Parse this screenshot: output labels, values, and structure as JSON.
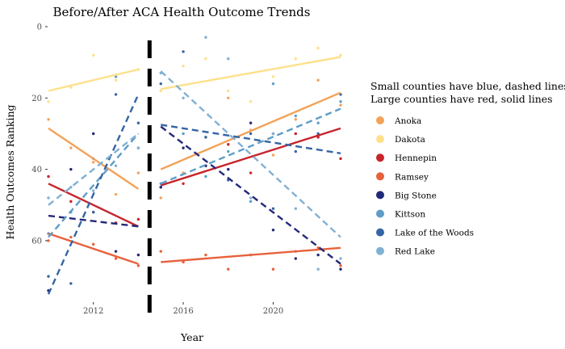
{
  "chart_data": {
    "type": "scatter",
    "title": "Before/After ACA Health Outcome Trends",
    "xlabel": "Year",
    "ylabel": "Health Outcomes Ranking",
    "xlim": [
      2010,
      2023
    ],
    "ylim": [
      0,
      77
    ],
    "y_reversed": true,
    "x_ticks": [
      2012,
      2016,
      2020
    ],
    "y_ticks": [
      0,
      20,
      40,
      60
    ],
    "grid": false,
    "breakpoint_year": 2014.5,
    "legend_title_lines": [
      "Small counties have blue, dashed lines",
      "Large counties have red, solid lines"
    ],
    "legend_position": "right",
    "series": [
      {
        "name": "Anoka",
        "color": "#F4A259",
        "dash": false,
        "points": [
          [
            2010,
            26
          ],
          [
            2011,
            34
          ],
          [
            2012,
            38
          ],
          [
            2013,
            47
          ],
          [
            2014,
            41
          ],
          [
            2015,
            48
          ],
          [
            2016,
            41
          ],
          [
            2017,
            31
          ],
          [
            2018,
            20
          ],
          [
            2019,
            29
          ],
          [
            2020,
            36
          ],
          [
            2021,
            26
          ],
          [
            2022,
            15
          ],
          [
            2023,
            22
          ]
        ],
        "fit_pre": [
          [
            2010,
            28.5
          ],
          [
            2014,
            45.5
          ]
        ],
        "fit_post": [
          [
            2015,
            40
          ],
          [
            2023,
            18.5
          ]
        ]
      },
      {
        "name": "Dakota",
        "color": "#FEE08B",
        "dash": false,
        "points": [
          [
            2010,
            21
          ],
          [
            2011,
            17
          ],
          [
            2012,
            8
          ],
          [
            2013,
            15
          ],
          [
            2014,
            12
          ],
          [
            2015,
            18
          ],
          [
            2016,
            11
          ],
          [
            2017,
            9
          ],
          [
            2018,
            18
          ],
          [
            2019,
            21
          ],
          [
            2020,
            14
          ],
          [
            2021,
            9
          ],
          [
            2022,
            6
          ],
          [
            2023,
            8
          ]
        ],
        "fit_pre": [
          [
            2010,
            18
          ],
          [
            2014,
            12
          ]
        ],
        "fit_post": [
          [
            2015,
            17.5
          ],
          [
            2023,
            8.5
          ]
        ]
      },
      {
        "name": "Hennepin",
        "color": "#C8242B",
        "dash": false,
        "points": [
          [
            2010,
            42
          ],
          [
            2011,
            49
          ],
          [
            2012,
            52
          ],
          [
            2013,
            55
          ],
          [
            2014,
            54
          ],
          [
            2015,
            45
          ],
          [
            2016,
            44
          ],
          [
            2017,
            39
          ],
          [
            2018,
            33
          ],
          [
            2019,
            41
          ],
          [
            2020,
            30
          ],
          [
            2021,
            30
          ],
          [
            2022,
            31
          ],
          [
            2023,
            37
          ]
        ],
        "fit_pre": [
          [
            2010,
            44
          ],
          [
            2014,
            56
          ]
        ],
        "fit_post": [
          [
            2015,
            44.5
          ],
          [
            2023,
            28.5
          ]
        ]
      },
      {
        "name": "Ramsey",
        "color": "#E8613C",
        "dash": false,
        "points": [
          [
            2010,
            60
          ],
          [
            2011,
            59
          ],
          [
            2012,
            61
          ],
          [
            2013,
            65
          ],
          [
            2014,
            67
          ],
          [
            2015,
            63
          ],
          [
            2016,
            66
          ],
          [
            2017,
            64
          ],
          [
            2018,
            68
          ],
          [
            2019,
            64
          ],
          [
            2020,
            68
          ],
          [
            2021,
            63
          ],
          [
            2022,
            62
          ],
          [
            2023,
            67
          ]
        ],
        "fit_pre": [
          [
            2010,
            58
          ],
          [
            2014,
            66.5
          ]
        ],
        "fit_post": [
          [
            2015,
            66
          ],
          [
            2023,
            62
          ]
        ]
      },
      {
        "name": "Big Stone",
        "color": "#23297A",
        "dash": true,
        "points": [
          [
            2010,
            74
          ],
          [
            2011,
            40
          ],
          [
            2012,
            30
          ],
          [
            2013,
            63
          ],
          [
            2014,
            64
          ],
          [
            2015,
            45
          ],
          [
            2016,
            34
          ],
          [
            2017,
            39
          ],
          [
            2018,
            40
          ],
          [
            2019,
            27
          ],
          [
            2020,
            57
          ],
          [
            2021,
            65
          ],
          [
            2022,
            64
          ],
          [
            2023,
            68
          ]
        ],
        "fit_pre": [
          [
            2010,
            53
          ],
          [
            2014,
            56
          ]
        ],
        "fit_post": [
          [
            2015,
            28
          ],
          [
            2023,
            66.5
          ]
        ]
      },
      {
        "name": "Kittson",
        "color": "#5E9DC8",
        "dash": true,
        "points": [
          [
            2010,
            58
          ],
          [
            2011,
            52
          ],
          [
            2012,
            37
          ],
          [
            2013,
            14
          ],
          [
            2014,
            34
          ],
          [
            2015,
            44
          ],
          [
            2016,
            30
          ],
          [
            2017,
            42
          ],
          [
            2018,
            35
          ],
          [
            2019,
            49
          ],
          [
            2020,
            16
          ],
          [
            2021,
            25
          ],
          [
            2022,
            27
          ],
          [
            2023,
            21
          ]
        ],
        "fit_pre": [
          [
            2010,
            59
          ],
          [
            2014,
            30
          ]
        ],
        "fit_post": [
          [
            2015,
            44
          ],
          [
            2023,
            23
          ]
        ]
      },
      {
        "name": "Lake of the Woods",
        "color": "#3465A4",
        "dash": true,
        "points": [
          [
            2010,
            70
          ],
          [
            2011,
            72
          ],
          [
            2012,
            52
          ],
          [
            2013,
            19
          ],
          [
            2014,
            27
          ],
          [
            2015,
            16
          ],
          [
            2016,
            7
          ],
          [
            2017,
            31
          ],
          [
            2018,
            43
          ],
          [
            2019,
            30
          ],
          [
            2020,
            51
          ],
          [
            2021,
            35
          ],
          [
            2022,
            30
          ],
          [
            2023,
            19
          ]
        ],
        "fit_pre": [
          [
            2010,
            75
          ],
          [
            2014,
            19
          ]
        ],
        "fit_post": [
          [
            2015,
            27.5
          ],
          [
            2023,
            35.5
          ]
        ]
      },
      {
        "name": "Red Lake",
        "color": "#80B1D3",
        "dash": true,
        "points": [
          [
            2010,
            48
          ],
          [
            2011,
            45
          ],
          [
            2012,
            46
          ],
          [
            2013,
            39
          ],
          [
            2014,
            34
          ],
          [
            2015,
            13
          ],
          [
            2016,
            20
          ],
          [
            2017,
            3
          ],
          [
            2018,
            9
          ],
          [
            2019,
            48
          ],
          [
            2020,
            30
          ],
          [
            2021,
            51
          ],
          [
            2022,
            68
          ],
          [
            2023,
            65
          ]
        ],
        "fit_pre": [
          [
            2010,
            50
          ],
          [
            2014,
            30
          ]
        ],
        "fit_post": [
          [
            2015,
            12.5
          ],
          [
            2023,
            59
          ]
        ]
      }
    ]
  }
}
